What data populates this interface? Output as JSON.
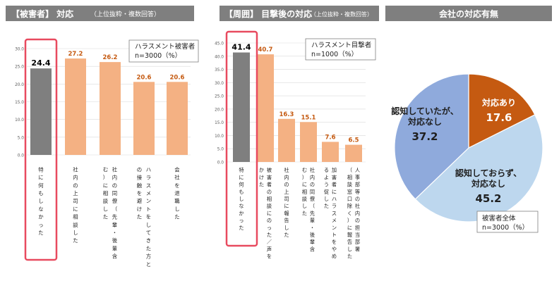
{
  "chart_data": [
    {
      "type": "bar",
      "title": "【被害者】 対応",
      "subtitle": "（上位抜粋・複数回答）",
      "legend_note": [
        "ハラスメント被害者",
        "n=3000（%）"
      ],
      "ylim": [
        0,
        30
      ],
      "yticks": [
        "0.0",
        "5.0",
        "10.0",
        "15.0",
        "20.0",
        "25.0",
        "30.0"
      ],
      "categories": [
        [
          "特に何もしなかった"
        ],
        [
          "社内の上司に相談した"
        ],
        [
          "社内の同僚（先輩・後輩含",
          "む）に相談した"
        ],
        [
          "ハラスメントをしてきた方と",
          "の接触を避けた"
        ],
        [
          "会社を退職した"
        ]
      ],
      "values": [
        24.4,
        27.2,
        26.2,
        20.6,
        20.6
      ],
      "value_labels": [
        "24.4",
        "27.2",
        "26.2",
        "20.6",
        "20.6"
      ],
      "highlight_index": 0
    },
    {
      "type": "bar",
      "title": "【周囲】 目撃後の対応",
      "subtitle": "（上位抜粋・複数回答）",
      "legend_note": [
        "ハラスメント目撃者",
        "n=1000（%）"
      ],
      "ylim": [
        0,
        45
      ],
      "yticks": [
        "0.0",
        "5.0",
        "10.0",
        "15.0",
        "20.0",
        "25.0",
        "30.0",
        "35.0",
        "40.0",
        "45.0"
      ],
      "categories": [
        [
          "特に何もしなかった"
        ],
        [
          "被害者の相談にのった／声を",
          "かけた"
        ],
        [
          "社内の上司に報告した"
        ],
        [
          "社内の同僚（先輩・後輩含",
          "む）に相談した"
        ],
        [
          "加害者にハラスメントをやめ",
          "るよう促した"
        ],
        [
          "人事部等の社内の担当部署",
          "（相談窓口除く）に報告した"
        ]
      ],
      "values": [
        41.4,
        40.7,
        16.3,
        15.1,
        7.6,
        6.5
      ],
      "value_labels": [
        "41.4",
        "40.7",
        "16.3",
        "15.1",
        "7.6",
        "6.5"
      ],
      "highlight_index": 0
    },
    {
      "type": "pie",
      "title": "会社の対応有無",
      "slices": [
        {
          "label": [
            "対応あり"
          ],
          "value": 17.6,
          "value_label": "17.6",
          "color": "#c55a11",
          "text_color": "#ffffff"
        },
        {
          "label": [
            "認知しておらず、",
            "対応なし"
          ],
          "value": 45.2,
          "value_label": "45.2",
          "color": "#bdd7ee",
          "text_color": "#1f1f1f"
        },
        {
          "label": [
            "認知していたが、",
            "対応なし"
          ],
          "value": 37.2,
          "value_label": "37.2",
          "color": "#8faadc",
          "text_color": "#1f1f1f"
        }
      ],
      "note": [
        "被害者全体",
        "n=3000（%）"
      ]
    }
  ],
  "colors": {
    "title_bg": "#7f7f7f",
    "bar_normal": "#f4b183",
    "bar_highlight": "#7f7f7f",
    "highlight_border": "#e84a5f",
    "grid": "#d9d9d9"
  }
}
